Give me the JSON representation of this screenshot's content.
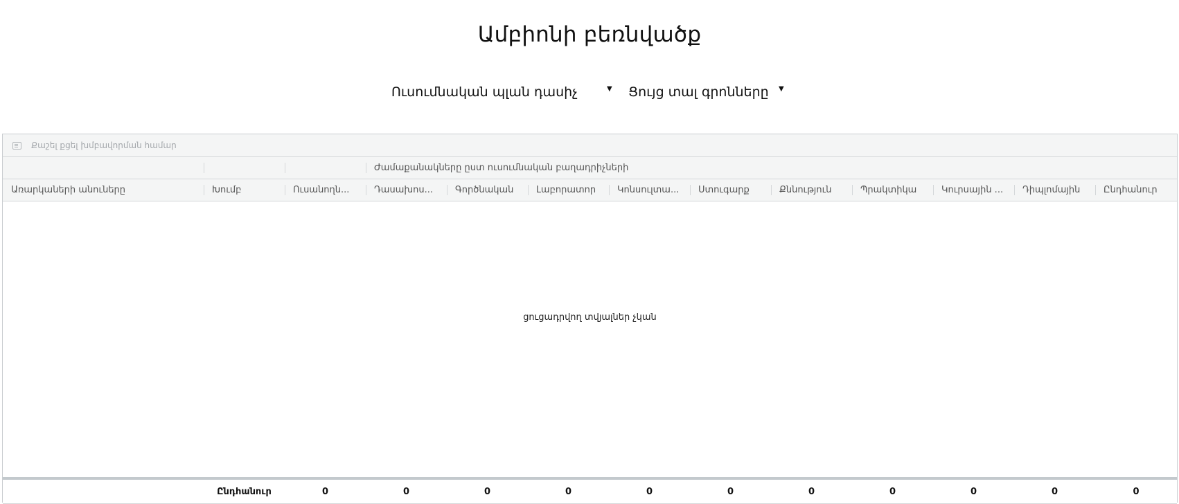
{
  "page": {
    "title": "Ամբիոնի բեռնվածք"
  },
  "filters": {
    "curriculum": {
      "value": "Ուսումնական պլան դասիչ"
    },
    "show_credits": {
      "value": "Ցույց տալ գրոնները"
    }
  },
  "grid": {
    "group_panel_text": "Քաշել քցել խմբավորման համար",
    "band_header": "Ժամաքանակները ըստ ուսումնական բաղադրիչների",
    "columns": [
      "Առարկաների անուները",
      "Խումբ",
      "Ուսանողն...",
      "Դասախոս...",
      "Գործնական",
      "Լաբորատոր",
      "Կոնսուլտա...",
      "Ստուգարք",
      "Քննություն",
      "Պրակտիկա",
      "Կուրսային ...",
      "Դիպլոմային",
      "Ընդհանուր"
    ],
    "no_data_text": "ցուցադրվող տվյալներ չկան",
    "footer": {
      "label": "Ընդհանուր",
      "values": [
        "0",
        "0",
        "0",
        "0",
        "0",
        "0",
        "0",
        "0",
        "0",
        "0",
        "0"
      ]
    }
  }
}
